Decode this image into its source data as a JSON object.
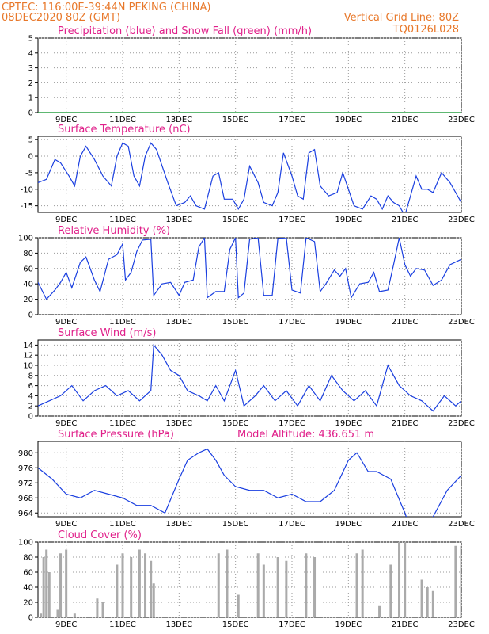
{
  "header": {
    "line1": "CPTEC:   116:00E-39:44N   PEKING (CHINA)",
    "line2_left": "08DEC2020 80Z (GMT)",
    "line2_right": "Vertical Grid Line: 80Z",
    "code": "TQ0126L028"
  },
  "colors": {
    "header": "#e8782a",
    "panel_title": "#e0208a",
    "series_line": "#1a3fe0",
    "snow": "#22aa22",
    "cloud_bars": "#aaaaaa"
  },
  "x_ticks": [
    "9DEC",
    "11DEC",
    "13DEC",
    "15DEC",
    "17DEC",
    "19DEC",
    "21DEC",
    "23DEC"
  ],
  "chart_data": [
    {
      "id": "precip",
      "type": "line",
      "title": "Precipitation (blue) and Snow Fall (green) (mm/h)",
      "ylim": [
        0,
        5
      ],
      "yticks": [
        0,
        1,
        2,
        3,
        4,
        5
      ],
      "grid": true,
      "series": [
        {
          "values": [
            [
              8.0,
              0
            ],
            [
              23.0,
              0
            ]
          ]
        },
        {
          "values": [
            [
              8.0,
              0
            ],
            [
              23.0,
              0
            ]
          ]
        }
      ]
    },
    {
      "id": "temp",
      "type": "line",
      "title": "Surface Temperature (nC)",
      "ylim": [
        -17,
        6
      ],
      "yticks": [
        -15,
        -10,
        -5,
        0,
        5
      ],
      "grid": true,
      "series": [
        {
          "values": [
            [
              8.0,
              -8
            ],
            [
              8.3,
              -7
            ],
            [
              8.6,
              -1
            ],
            [
              8.8,
              -2
            ],
            [
              9.1,
              -6
            ],
            [
              9.3,
              -9
            ],
            [
              9.5,
              0
            ],
            [
              9.7,
              3
            ],
            [
              10.0,
              -1
            ],
            [
              10.3,
              -6
            ],
            [
              10.6,
              -9
            ],
            [
              10.8,
              0
            ],
            [
              11.0,
              4
            ],
            [
              11.2,
              3
            ],
            [
              11.4,
              -6
            ],
            [
              11.6,
              -9
            ],
            [
              11.8,
              0
            ],
            [
              12.0,
              4
            ],
            [
              12.2,
              2
            ],
            [
              12.4,
              -3
            ],
            [
              12.6,
              -8
            ],
            [
              12.9,
              -15
            ],
            [
              13.2,
              -14
            ],
            [
              13.4,
              -12
            ],
            [
              13.6,
              -15
            ],
            [
              13.9,
              -16
            ],
            [
              14.2,
              -6
            ],
            [
              14.4,
              -5
            ],
            [
              14.6,
              -13
            ],
            [
              14.9,
              -13
            ],
            [
              15.1,
              -16
            ],
            [
              15.3,
              -13
            ],
            [
              15.5,
              -3
            ],
            [
              15.8,
              -8
            ],
            [
              16.0,
              -14
            ],
            [
              16.3,
              -15
            ],
            [
              16.5,
              -11
            ],
            [
              16.7,
              1
            ],
            [
              17.0,
              -6
            ],
            [
              17.2,
              -12
            ],
            [
              17.4,
              -13
            ],
            [
              17.6,
              1
            ],
            [
              17.8,
              2
            ],
            [
              18.0,
              -9
            ],
            [
              18.3,
              -12
            ],
            [
              18.6,
              -11
            ],
            [
              18.8,
              -5
            ],
            [
              19.0,
              -10
            ],
            [
              19.2,
              -15
            ],
            [
              19.5,
              -16
            ],
            [
              19.8,
              -12
            ],
            [
              20.0,
              -13
            ],
            [
              20.2,
              -16
            ],
            [
              20.4,
              -12
            ],
            [
              20.6,
              -14
            ],
            [
              20.8,
              -15
            ],
            [
              21.0,
              -18
            ],
            [
              21.2,
              -12
            ],
            [
              21.4,
              -6
            ],
            [
              21.6,
              -10
            ],
            [
              21.8,
              -10
            ],
            [
              22.0,
              -11
            ],
            [
              22.3,
              -5
            ],
            [
              22.6,
              -8
            ],
            [
              22.8,
              -11
            ],
            [
              23.0,
              -14
            ]
          ]
        }
      ]
    },
    {
      "id": "rh",
      "type": "line",
      "title": "Relative Humidity (%)",
      "ylim": [
        0,
        100
      ],
      "yticks": [
        0,
        20,
        40,
        60,
        80,
        100
      ],
      "grid": true,
      "series": [
        {
          "values": [
            [
              8.0,
              42
            ],
            [
              8.3,
              20
            ],
            [
              8.6,
              32
            ],
            [
              8.8,
              42
            ],
            [
              9.0,
              55
            ],
            [
              9.2,
              35
            ],
            [
              9.5,
              68
            ],
            [
              9.7,
              75
            ],
            [
              10.0,
              45
            ],
            [
              10.2,
              30
            ],
            [
              10.5,
              72
            ],
            [
              10.8,
              78
            ],
            [
              11.0,
              92
            ],
            [
              11.1,
              45
            ],
            [
              11.3,
              55
            ],
            [
              11.5,
              82
            ],
            [
              11.7,
              97
            ],
            [
              12.0,
              98
            ],
            [
              12.1,
              25
            ],
            [
              12.4,
              40
            ],
            [
              12.7,
              42
            ],
            [
              13.0,
              25
            ],
            [
              13.2,
              42
            ],
            [
              13.5,
              45
            ],
            [
              13.7,
              88
            ],
            [
              13.9,
              100
            ],
            [
              14.0,
              22
            ],
            [
              14.3,
              30
            ],
            [
              14.6,
              30
            ],
            [
              14.8,
              85
            ],
            [
              15.0,
              100
            ],
            [
              15.1,
              22
            ],
            [
              15.3,
              28
            ],
            [
              15.5,
              98
            ],
            [
              15.8,
              100
            ],
            [
              16.0,
              25
            ],
            [
              16.3,
              25
            ],
            [
              16.5,
              99
            ],
            [
              16.8,
              100
            ],
            [
              17.0,
              32
            ],
            [
              17.3,
              28
            ],
            [
              17.5,
              100
            ],
            [
              17.8,
              95
            ],
            [
              18.0,
              30
            ],
            [
              18.2,
              40
            ],
            [
              18.5,
              58
            ],
            [
              18.7,
              50
            ],
            [
              18.9,
              60
            ],
            [
              19.1,
              22
            ],
            [
              19.4,
              40
            ],
            [
              19.7,
              42
            ],
            [
              19.9,
              55
            ],
            [
              20.1,
              30
            ],
            [
              20.4,
              32
            ],
            [
              20.6,
              65
            ],
            [
              20.8,
              100
            ],
            [
              21.0,
              65
            ],
            [
              21.2,
              50
            ],
            [
              21.4,
              60
            ],
            [
              21.7,
              58
            ],
            [
              22.0,
              38
            ],
            [
              22.3,
              45
            ],
            [
              22.6,
              65
            ],
            [
              23.0,
              72
            ]
          ]
        }
      ]
    },
    {
      "id": "wind",
      "type": "line",
      "title": "Surface Wind (m/s)",
      "ylim": [
        0,
        15
      ],
      "yticks": [
        0,
        2,
        4,
        6,
        8,
        10,
        12,
        14
      ],
      "grid": true,
      "series": [
        {
          "values": [
            [
              8.0,
              2
            ],
            [
              8.4,
              3
            ],
            [
              8.8,
              4
            ],
            [
              9.2,
              6
            ],
            [
              9.6,
              3
            ],
            [
              10.0,
              5
            ],
            [
              10.4,
              6
            ],
            [
              10.8,
              4
            ],
            [
              11.2,
              5
            ],
            [
              11.6,
              3
            ],
            [
              12.0,
              5
            ],
            [
              12.1,
              14
            ],
            [
              12.4,
              12
            ],
            [
              12.7,
              9
            ],
            [
              13.0,
              8
            ],
            [
              13.3,
              5
            ],
            [
              13.7,
              4
            ],
            [
              14.0,
              3
            ],
            [
              14.3,
              6
            ],
            [
              14.6,
              3
            ],
            [
              15.0,
              9
            ],
            [
              15.3,
              2
            ],
            [
              15.7,
              4
            ],
            [
              16.0,
              6
            ],
            [
              16.4,
              3
            ],
            [
              16.8,
              5
            ],
            [
              17.2,
              2
            ],
            [
              17.6,
              6
            ],
            [
              18.0,
              3
            ],
            [
              18.4,
              8
            ],
            [
              18.8,
              5
            ],
            [
              19.2,
              3
            ],
            [
              19.6,
              5
            ],
            [
              20.0,
              2
            ],
            [
              20.4,
              10
            ],
            [
              20.8,
              6
            ],
            [
              21.2,
              4
            ],
            [
              21.6,
              3
            ],
            [
              22.0,
              1
            ],
            [
              22.4,
              4
            ],
            [
              22.8,
              2
            ],
            [
              23.0,
              3
            ]
          ]
        }
      ]
    },
    {
      "id": "press",
      "type": "line",
      "title": "Surface Pressure (hPa)",
      "subtitle": "Model Altitude: 436.651 m",
      "ylim": [
        963,
        983
      ],
      "yticks": [
        964,
        968,
        972,
        976,
        980
      ],
      "grid": true,
      "series": [
        {
          "values": [
            [
              8.0,
              976
            ],
            [
              8.5,
              973
            ],
            [
              9.0,
              969
            ],
            [
              9.5,
              968
            ],
            [
              10.0,
              970
            ],
            [
              10.5,
              969
            ],
            [
              11.0,
              968
            ],
            [
              11.5,
              966
            ],
            [
              12.0,
              966
            ],
            [
              12.5,
              964
            ],
            [
              13.0,
              973
            ],
            [
              13.3,
              978
            ],
            [
              13.7,
              980
            ],
            [
              14.0,
              981
            ],
            [
              14.3,
              978
            ],
            [
              14.6,
              974
            ],
            [
              15.0,
              971
            ],
            [
              15.5,
              970
            ],
            [
              16.0,
              970
            ],
            [
              16.5,
              968
            ],
            [
              17.0,
              969
            ],
            [
              17.5,
              967
            ],
            [
              18.0,
              967
            ],
            [
              18.5,
              970
            ],
            [
              19.0,
              978
            ],
            [
              19.3,
              980
            ],
            [
              19.7,
              975
            ],
            [
              20.0,
              975
            ],
            [
              20.5,
              973
            ],
            [
              21.0,
              964
            ],
            [
              21.3,
              958
            ],
            [
              21.7,
              960
            ],
            [
              22.0,
              963
            ],
            [
              22.5,
              970
            ],
            [
              23.0,
              974
            ]
          ]
        }
      ]
    },
    {
      "id": "cloud",
      "type": "bar",
      "title": "Cloud Cover (%)",
      "ylim": [
        0,
        100
      ],
      "yticks": [
        0,
        20,
        40,
        60,
        80,
        100
      ],
      "grid": true,
      "series": [
        {
          "values": [
            [
              8.1,
              5
            ],
            [
              8.2,
              80
            ],
            [
              8.3,
              90
            ],
            [
              8.4,
              60
            ],
            [
              8.7,
              10
            ],
            [
              8.8,
              85
            ],
            [
              9.0,
              90
            ],
            [
              9.3,
              5
            ],
            [
              10.1,
              25
            ],
            [
              10.3,
              20
            ],
            [
              10.8,
              70
            ],
            [
              11.0,
              85
            ],
            [
              11.3,
              80
            ],
            [
              11.6,
              90
            ],
            [
              11.8,
              85
            ],
            [
              12.0,
              75
            ],
            [
              12.1,
              45
            ],
            [
              14.4,
              85
            ],
            [
              14.7,
              90
            ],
            [
              15.1,
              30
            ],
            [
              15.8,
              85
            ],
            [
              16.0,
              70
            ],
            [
              16.5,
              80
            ],
            [
              16.8,
              75
            ],
            [
              17.5,
              85
            ],
            [
              17.8,
              80
            ],
            [
              19.3,
              85
            ],
            [
              19.5,
              90
            ],
            [
              20.1,
              15
            ],
            [
              20.5,
              70
            ],
            [
              20.8,
              100
            ],
            [
              21.0,
              100
            ],
            [
              21.6,
              50
            ],
            [
              21.8,
              40
            ],
            [
              22.0,
              35
            ],
            [
              22.8,
              95
            ],
            [
              23.0,
              95
            ]
          ]
        }
      ]
    }
  ]
}
